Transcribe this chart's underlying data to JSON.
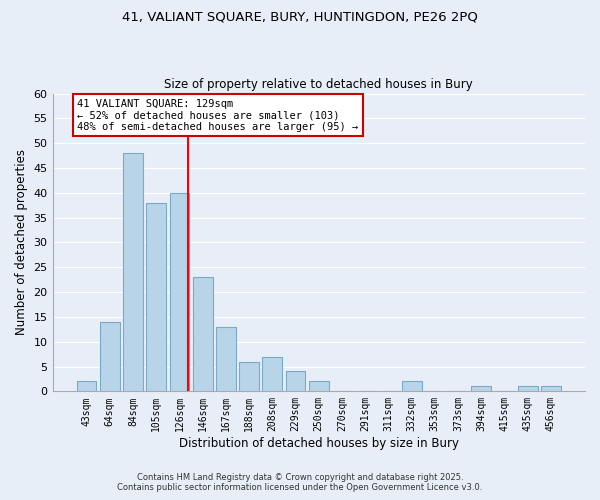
{
  "title_line1": "41, VALIANT SQUARE, BURY, HUNTINGDON, PE26 2PQ",
  "title_line2": "Size of property relative to detached houses in Bury",
  "bar_labels": [
    "43sqm",
    "64sqm",
    "84sqm",
    "105sqm",
    "126sqm",
    "146sqm",
    "167sqm",
    "188sqm",
    "208sqm",
    "229sqm",
    "250sqm",
    "270sqm",
    "291sqm",
    "311sqm",
    "332sqm",
    "353sqm",
    "373sqm",
    "394sqm",
    "415sqm",
    "435sqm",
    "456sqm"
  ],
  "bar_values": [
    2,
    14,
    48,
    38,
    40,
    23,
    13,
    6,
    7,
    4,
    2,
    0,
    0,
    0,
    2,
    0,
    0,
    1,
    0,
    1,
    1
  ],
  "bar_color": "#b8d4e8",
  "bar_edgecolor": "#7aaac8",
  "vline_x_index": 4,
  "vline_color": "red",
  "annotation_title": "41 VALIANT SQUARE: 129sqm",
  "annotation_line1": "← 52% of detached houses are smaller (103)",
  "annotation_line2": "48% of semi-detached houses are larger (95) →",
  "annotation_box_color": "white",
  "annotation_box_edgecolor": "#cc0000",
  "xlabel": "Distribution of detached houses by size in Bury",
  "ylabel": "Number of detached properties",
  "ylim": [
    0,
    60
  ],
  "yticks": [
    0,
    5,
    10,
    15,
    20,
    25,
    30,
    35,
    40,
    45,
    50,
    55,
    60
  ],
  "footer_line1": "Contains HM Land Registry data © Crown copyright and database right 2025.",
  "footer_line2": "Contains public sector information licensed under the Open Government Licence v3.0.",
  "bg_color": "#e8eef8",
  "plot_bg_color": "#e8eef8",
  "grid_color": "#ffffff",
  "spine_color": "#aaaaaa"
}
